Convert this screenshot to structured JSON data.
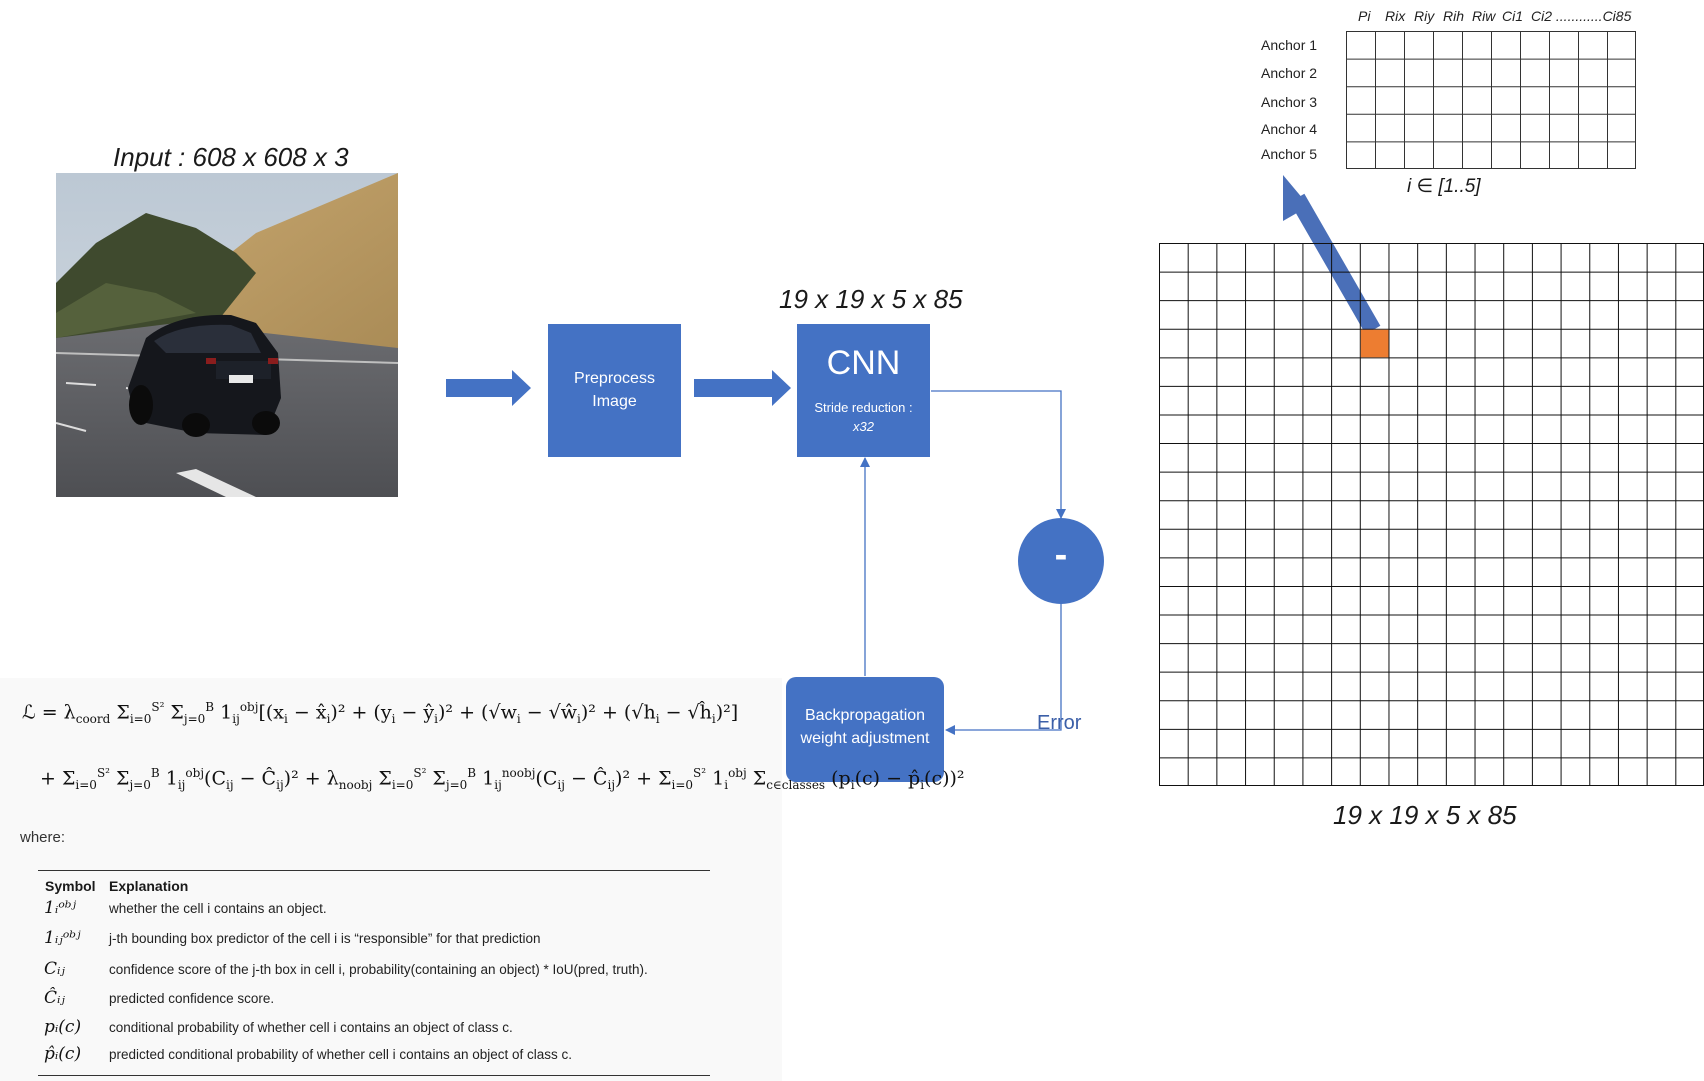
{
  "input": {
    "title": "Input : 608 x 608 x 3"
  },
  "preprocess": {
    "line1": "Preprocess",
    "line2": "Image"
  },
  "cnn": {
    "top_label": "19 x 19 x 5 x 85",
    "title": "CNN",
    "stride_label": "Stride reduction :",
    "stride_value": "x32"
  },
  "diff": {
    "symbol": "-"
  },
  "error": {
    "label": "Error"
  },
  "backprop": {
    "line1": "Backpropagation",
    "line2": "weight adjustment"
  },
  "grid": {
    "rows": 19,
    "cols": 19,
    "label": "19 x 19 x 5 x 85",
    "highlight_row": 3,
    "highlight_col": 7,
    "highlight_color": "#ed7d31",
    "line_color": "#111111"
  },
  "anchors": {
    "header": [
      "Pi",
      "Rix",
      "Riy",
      "Rih",
      "Riw",
      "Ci1",
      "Ci2 ............Ci85"
    ],
    "rows": [
      "Anchor 1",
      "Anchor 2",
      "Anchor 3",
      "Anchor 4",
      "Anchor 5"
    ],
    "range_label": "i ∈ [1..5]",
    "cols": 10
  },
  "colors": {
    "blue": "#4472c4",
    "arrow_blue": "#4a6fb8",
    "orange": "#ed7d31"
  },
  "loss": {
    "line1_lhs": "ℒ = λ",
    "coord": "coord",
    "where": "where:",
    "table": {
      "headers": [
        "Symbol",
        "Explanation"
      ],
      "rows": [
        {
          "symbol": "1ᵢᵒᵇʲ",
          "explanation": "whether the cell i contains an object."
        },
        {
          "symbol": "1ᵢⱼᵒᵇʲ",
          "explanation": "j-th bounding box predictor of the cell i is “responsible” for that prediction"
        },
        {
          "symbol": "Cᵢⱼ",
          "explanation": "confidence score of the j-th box in cell i, probability(containing an object) * IoU(pred, truth)."
        },
        {
          "symbol": "Ĉᵢⱼ",
          "explanation": "predicted confidence score."
        },
        {
          "symbol": "pᵢ(c)",
          "explanation": "conditional probability of whether cell i contains an object of class c."
        },
        {
          "symbol": "p̂ᵢ(c)",
          "explanation": "predicted conditional probability of whether cell i contains an object of class c."
        }
      ]
    }
  }
}
